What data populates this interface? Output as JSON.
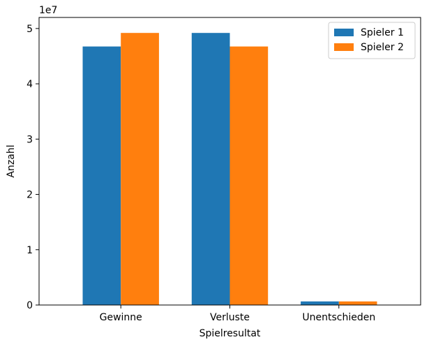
{
  "chart_data": {
    "type": "bar",
    "categories": [
      "Gewinne",
      "Verluste",
      "Unentschieden"
    ],
    "series": [
      {
        "name": "Spieler 1",
        "color": "#1f77b4",
        "values": [
          46750000,
          49200000,
          650000
        ]
      },
      {
        "name": "Spieler 2",
        "color": "#ff7f0e",
        "values": [
          49200000,
          46750000,
          650000
        ]
      }
    ],
    "xlabel": "Spielresultat",
    "ylabel": "Anzahl",
    "offset_label": "1e7",
    "ylim": [
      0,
      52000000
    ],
    "yticks": [
      0,
      10000000,
      20000000,
      30000000,
      40000000,
      50000000
    ],
    "ytick_labels": [
      "0",
      "1",
      "2",
      "3",
      "4",
      "5"
    ],
    "legend_position": "top-right",
    "grid": false
  }
}
